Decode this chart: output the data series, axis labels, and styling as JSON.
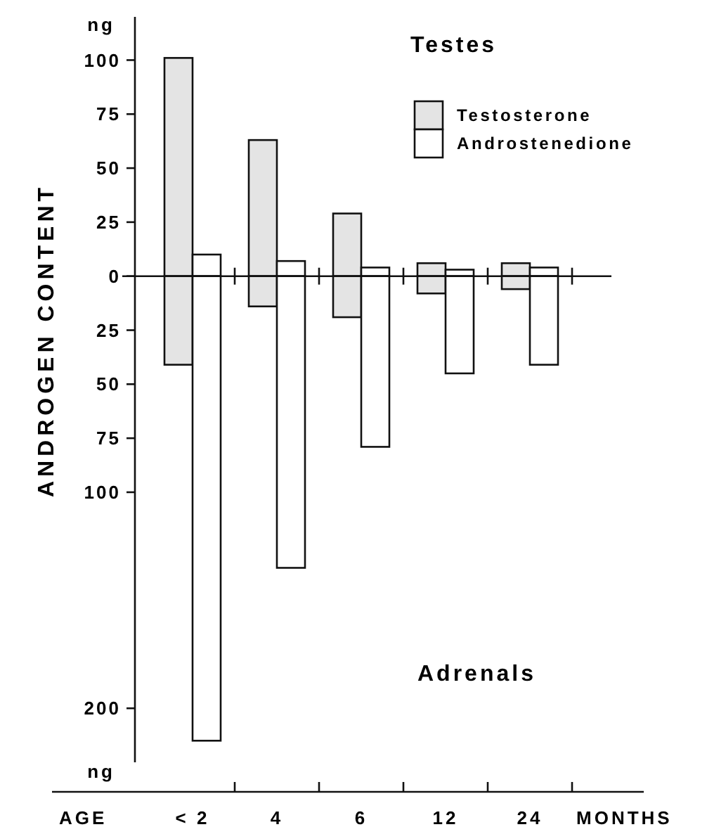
{
  "chart_data": [
    {
      "type": "bar",
      "title": "Testes",
      "ylabel": "ANDROGEN CONTENT",
      "categories": [
        null,
        null,
        null,
        null,
        null
      ],
      "series": [
        {
          "name": "Testosterone",
          "color": "#e4e4e4",
          "values": [
            101,
            63,
            29,
            6,
            6
          ]
        },
        {
          "name": "Androstenedione",
          "color": "#ffffff",
          "values": [
            10,
            7,
            4,
            3,
            4
          ]
        }
      ],
      "ylim": [
        0,
        120
      ],
      "yticks": [
        100,
        75,
        50,
        25,
        0
      ],
      "tick_labels": "y",
      "legend": "top right",
      "annotations": [
        "ng"
      ]
    },
    {
      "type": "bar",
      "title": "Adrenals",
      "xlabel": "AGE",
      "categories": [
        "< 2",
        "4",
        "6",
        "12",
        "24"
      ],
      "series": [
        {
          "color": "#e4e4e4",
          "values": [
            41,
            14,
            19,
            8,
            6
          ]
        },
        {
          "color": "#ffffff",
          "values": [
            215,
            135,
            79,
            45,
            41
          ]
        }
      ],
      "ylim": [
        225,
        0
      ],
      "yticks": [
        25,
        50,
        75,
        100,
        200
      ],
      "annotations": [
        "ng",
        "MONTHS"
      ]
    }
  ]
}
